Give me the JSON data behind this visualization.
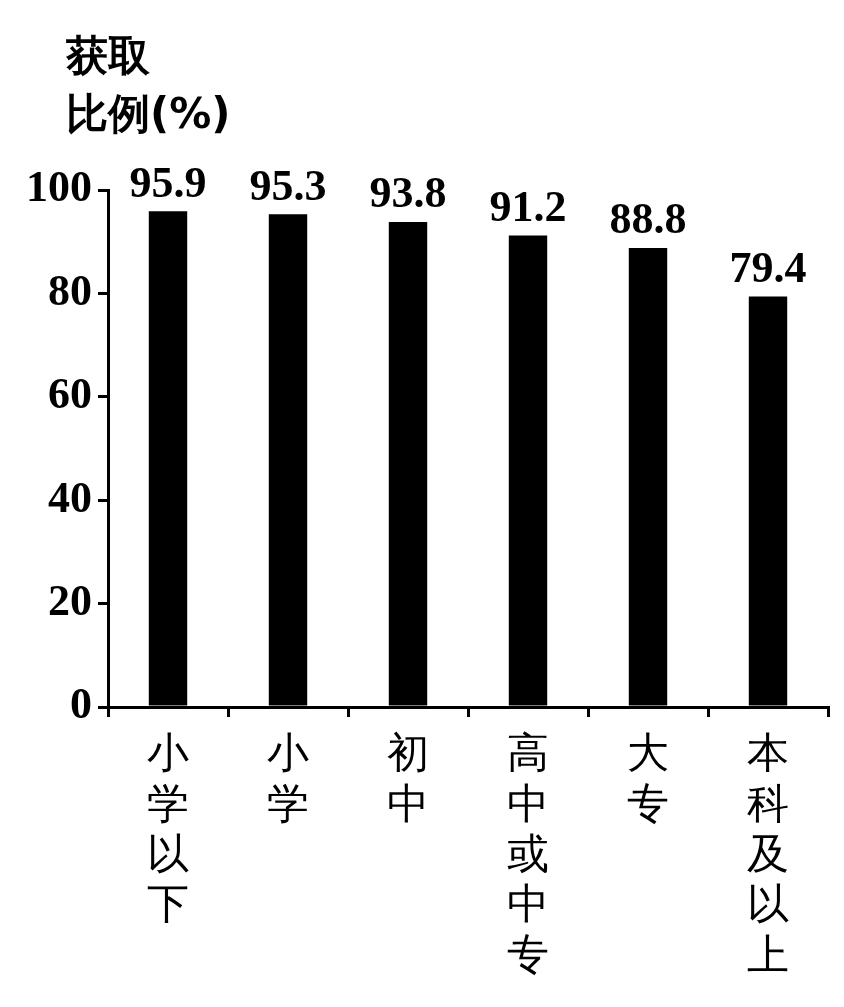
{
  "chart_data": {
    "type": "bar",
    "ylabel": "获取比例(%)",
    "categories": [
      "小学以下",
      "小学",
      "初中",
      "高中或中专",
      "大专",
      "本科及以上"
    ],
    "values": [
      95.9,
      95.3,
      93.8,
      91.2,
      88.8,
      79.4
    ],
    "color": "#000000",
    "ylim": [
      0,
      100
    ],
    "yticks": [
      0,
      20,
      40,
      60,
      80,
      100
    ],
    "grid": false,
    "legend": false,
    "data_labels": true
  }
}
